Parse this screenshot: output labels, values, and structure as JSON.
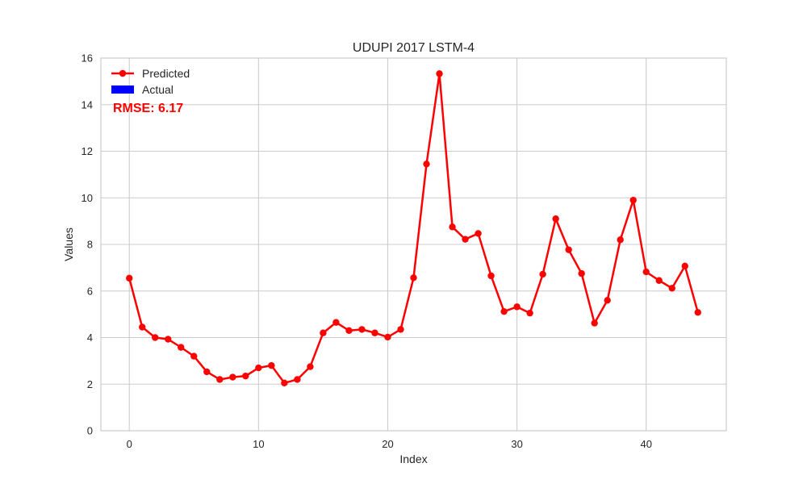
{
  "chart_data": {
    "type": "line",
    "title": "UDUPI 2017 LSTM-4",
    "xlabel": "Index",
    "ylabel": "Values",
    "xlim": [
      -2.2,
      46.2
    ],
    "ylim": [
      0,
      16
    ],
    "xticks": [
      0,
      10,
      20,
      30,
      40
    ],
    "yticks": [
      0,
      2,
      4,
      6,
      8,
      10,
      12,
      14,
      16
    ],
    "grid": true,
    "legend_position": "top-left",
    "annotation": "RMSE: 6.17",
    "series": [
      {
        "name": "Predicted",
        "color": "#ff0000",
        "marker": "circle",
        "x": [
          0,
          1,
          2,
          3,
          4,
          5,
          6,
          7,
          8,
          9,
          10,
          11,
          12,
          13,
          14,
          15,
          16,
          17,
          18,
          19,
          20,
          21,
          22,
          23,
          24,
          25,
          26,
          27,
          28,
          29,
          30,
          31,
          32,
          33,
          34,
          35,
          36,
          37,
          38,
          39,
          40,
          41,
          42,
          43,
          44
        ],
        "values": [
          6.55,
          4.45,
          4.0,
          3.93,
          3.58,
          3.2,
          2.53,
          2.2,
          2.3,
          2.35,
          2.7,
          2.8,
          2.05,
          2.2,
          2.75,
          4.2,
          4.65,
          4.3,
          4.35,
          4.2,
          4.02,
          4.35,
          6.57,
          11.45,
          15.33,
          8.75,
          8.22,
          8.47,
          6.65,
          5.12,
          5.32,
          5.05,
          6.72,
          9.1,
          7.77,
          6.75,
          4.62,
          5.6,
          8.2,
          9.9,
          6.82,
          6.45,
          6.12,
          7.07,
          5.08
        ]
      },
      {
        "name": "Actual",
        "color": "#0000ff",
        "marker": "bar",
        "x": [],
        "values": []
      }
    ]
  }
}
